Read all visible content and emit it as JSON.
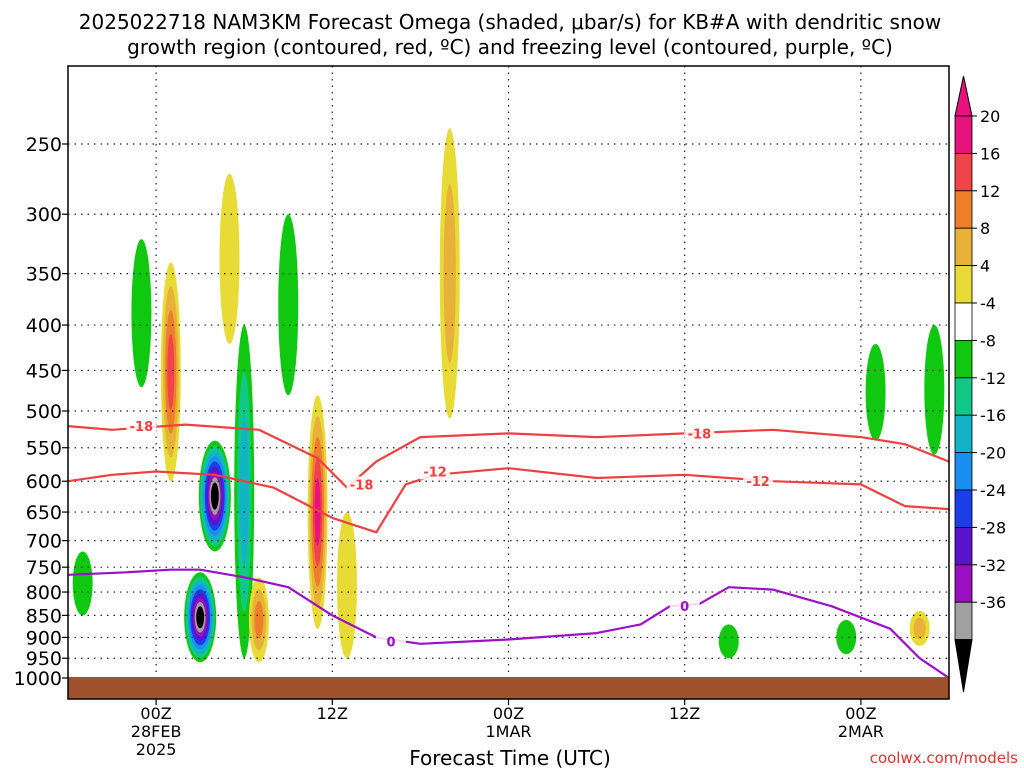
{
  "chart_data": {
    "type": "heatmap",
    "title_line1": "2025022718 NAM3KM Forecast Omega (shaded, μbar/s) for KB#A with dendritic snow",
    "title_line2": "growth region (contoured, red, ºC) and freezing level (contoured, purple, ºC)",
    "xlabel": "Forecast Time (UTC)",
    "ylabel": "",
    "credit": "coolwx.com/models",
    "y_axis": {
      "scale": "log-pressure",
      "unit": "hPa",
      "ticks": [
        "250",
        "300",
        "350",
        "400",
        "450",
        "500",
        "550",
        "600",
        "650",
        "700",
        "750",
        "800",
        "850",
        "900",
        "950",
        "1000"
      ],
      "range": [
        1000,
        210
      ]
    },
    "x_axis": {
      "range": [
        "2025-02-27T18Z",
        "2025-03-02T06Z"
      ],
      "ticks": [
        {
          "time": "2025-02-28T00Z",
          "lines": [
            "00Z",
            "28FEB",
            "2025"
          ]
        },
        {
          "time": "2025-02-28T12Z",
          "lines": [
            "12Z"
          ]
        },
        {
          "time": "2025-03-01T00Z",
          "lines": [
            "00Z",
            "1MAR"
          ]
        },
        {
          "time": "2025-03-01T12Z",
          "lines": [
            "12Z"
          ]
        },
        {
          "time": "2025-03-02T00Z",
          "lines": [
            "00Z",
            "2MAR"
          ]
        }
      ]
    },
    "grid": true,
    "colorbar": {
      "label_values": [
        "20",
        "16",
        "12",
        "8",
        "4",
        "-4",
        "-8",
        "-12",
        "-16",
        "-20",
        "-24",
        "-28",
        "-32",
        "-36"
      ],
      "bins": [
        {
          "from": 20,
          "to": 24,
          "color": "#e8127c"
        },
        {
          "from": 16,
          "to": 20,
          "color": "#f0434a"
        },
        {
          "from": 12,
          "to": 16,
          "color": "#ef7e2b"
        },
        {
          "from": 8,
          "to": 12,
          "color": "#e8b23a"
        },
        {
          "from": 4,
          "to": 8,
          "color": "#e8db36"
        },
        {
          "from": -4,
          "to": 4,
          "color": "#ffffff"
        },
        {
          "from": -8,
          "to": -4,
          "color": "#11c811"
        },
        {
          "from": -12,
          "to": -8,
          "color": "#10c888"
        },
        {
          "from": -16,
          "to": -12,
          "color": "#12b3c6"
        },
        {
          "from": -20,
          "to": -16,
          "color": "#1a8ff0"
        },
        {
          "from": -24,
          "to": -20,
          "color": "#1c3ee8"
        },
        {
          "from": -28,
          "to": -24,
          "color": "#5a12cc"
        },
        {
          "from": -32,
          "to": -28,
          "color": "#9a10c0"
        },
        {
          "from": -36,
          "to": -32,
          "color": "#a0a0a0"
        }
      ],
      "arrow_top_color": "#e8127c",
      "arrow_bottom_color": "#000000"
    },
    "omega_features": [
      {
        "sign": "rising",
        "time": "2025-02-28T04Z",
        "p_top": 540,
        "p_bot": 720,
        "peak": -40
      },
      {
        "sign": "rising",
        "time": "2025-02-28T03Z",
        "p_top": 760,
        "p_bot": 960,
        "peak": -40
      },
      {
        "sign": "rising",
        "time": "2025-02-28T06Z",
        "p_top": 400,
        "p_bot": 950,
        "peak": -14
      },
      {
        "sign": "rising",
        "time": "2025-02-27T23Z",
        "p_top": 320,
        "p_bot": 470,
        "peak": -6
      },
      {
        "sign": "rising",
        "time": "2025-02-28T09Z",
        "p_top": 300,
        "p_bot": 480,
        "peak": -6
      },
      {
        "sign": "rising",
        "time": "2025-02-27T19Z",
        "p_top": 720,
        "p_bot": 850,
        "peak": -6
      },
      {
        "sign": "rising",
        "time": "2025-03-02T01Z",
        "p_top": 420,
        "p_bot": 540,
        "peak": -6
      },
      {
        "sign": "rising",
        "time": "2025-03-02T05Z",
        "p_top": 400,
        "p_bot": 560,
        "peak": -6
      },
      {
        "sign": "rising",
        "time": "2025-03-01T15Z",
        "p_top": 870,
        "p_bot": 950,
        "peak": -6
      },
      {
        "sign": "rising",
        "time": "2025-03-01T23Z",
        "p_top": 860,
        "p_bot": 940,
        "peak": -6
      },
      {
        "sign": "sinking",
        "time": "2025-02-28T01Z",
        "p_top": 340,
        "p_bot": 600,
        "peak": 18
      },
      {
        "sign": "sinking",
        "time": "2025-02-28T05Z",
        "p_top": 270,
        "p_bot": 420,
        "peak": 6
      },
      {
        "sign": "sinking",
        "time": "2025-02-28T11Z",
        "p_top": 480,
        "p_bot": 880,
        "peak": 22
      },
      {
        "sign": "sinking",
        "time": "2025-02-28T07Z",
        "p_top": 770,
        "p_bot": 960,
        "peak": 14
      },
      {
        "sign": "sinking",
        "time": "2025-02-28T13Z",
        "p_top": 650,
        "p_bot": 950,
        "peak": 6
      },
      {
        "sign": "sinking",
        "time": "2025-02-28T20Z",
        "p_top": 240,
        "p_bot": 510,
        "peak": 10
      },
      {
        "sign": "sinking",
        "time": "2025-03-02T04Z",
        "p_top": 840,
        "p_bot": 920,
        "peak": 10
      }
    ],
    "series": [
      {
        "name": "-18",
        "color": "#ee4040",
        "x": [
          "2025-02-27T18Z",
          "2025-02-27T21Z",
          "2025-02-28T02Z",
          "2025-02-28T07Z",
          "2025-02-28T11Z",
          "2025-02-28T13Z",
          "2025-02-28T15Z",
          "2025-02-28T18Z",
          "2025-03-01T00Z",
          "2025-03-01T06Z",
          "2025-03-01T12Z",
          "2025-03-01T18Z",
          "2025-03-02T00Z",
          "2025-03-02T03Z",
          "2025-03-02T06Z"
        ],
        "y": [
          520,
          525,
          518,
          525,
          565,
          610,
          570,
          535,
          530,
          535,
          530,
          525,
          535,
          545,
          570
        ]
      },
      {
        "name": "-12",
        "color": "#ee4040",
        "x": [
          "2025-02-27T18Z",
          "2025-02-27T21Z",
          "2025-02-28T00Z",
          "2025-02-28T04Z",
          "2025-02-28T08Z",
          "2025-02-28T12Z",
          "2025-02-28T15Z",
          "2025-02-28T17Z",
          "2025-02-28T19Z",
          "2025-03-01T00Z",
          "2025-03-01T06Z",
          "2025-03-01T12Z",
          "2025-03-01T18Z",
          "2025-03-02T00Z",
          "2025-03-02T03Z",
          "2025-03-02T06Z"
        ],
        "y": [
          600,
          590,
          585,
          590,
          610,
          660,
          685,
          605,
          590,
          580,
          595,
          590,
          600,
          605,
          640,
          645
        ]
      },
      {
        "name": "0",
        "color": "#9b10c8",
        "x": [
          "2025-02-27T18Z",
          "2025-02-27T22Z",
          "2025-02-28T01Z",
          "2025-02-28T03Z",
          "2025-02-28T06Z",
          "2025-02-28T09Z",
          "2025-02-28T12Z",
          "2025-02-28T15Z",
          "2025-02-28T18Z",
          "2025-03-01T00Z",
          "2025-03-01T06Z",
          "2025-03-01T09Z",
          "2025-03-01T11Z",
          "2025-03-01T13Z",
          "2025-03-01T15Z",
          "2025-03-01T18Z",
          "2025-03-01T22Z",
          "2025-03-02T02Z",
          "2025-03-02T04Z",
          "2025-03-02T06Z"
        ],
        "y": [
          765,
          760,
          755,
          755,
          770,
          790,
          850,
          900,
          915,
          905,
          890,
          870,
          830,
          825,
          790,
          795,
          830,
          880,
          950,
          1000
        ]
      }
    ],
    "contour_labels": [
      {
        "text": "-18",
        "time": "2025-02-27T23Z",
        "p": 520
      },
      {
        "text": "-18",
        "time": "2025-03-01T13Z",
        "p": 530
      },
      {
        "text": "-18",
        "time": "2025-02-28T14Z",
        "p": 605
      },
      {
        "text": "-12",
        "time": "2025-02-28T19Z",
        "p": 585
      },
      {
        "text": "-12",
        "time": "2025-03-01T17Z",
        "p": 600
      },
      {
        "text": "0",
        "time": "2025-03-01T12Z",
        "p": 830
      },
      {
        "text": "0",
        "time": "2025-02-28T16Z",
        "p": 910
      }
    ]
  }
}
